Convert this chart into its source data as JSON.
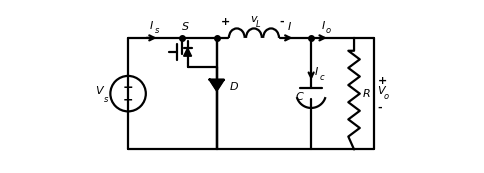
{
  "fig_width": 4.85,
  "fig_height": 1.73,
  "dpi": 100,
  "lw": 1.6,
  "color": "black",
  "bg": "white",
  "Vs_label": "V",
  "Vs_sub": "s",
  "Is_label": "I",
  "Is_sub": "s",
  "S_label": "S",
  "VL_label": "v",
  "VL_sub": "L",
  "VL_plus": "+",
  "VL_minus": "-",
  "I_label": "I",
  "Io_label": "I",
  "Io_sub": "o",
  "Ic_label": "I",
  "Ic_sub": "c",
  "C_label": "C",
  "R_label": "R",
  "D_label": "D",
  "Vo_label": "V",
  "Vo_sub": "o",
  "Vo_plus": "+",
  "Vo_minus": "-"
}
